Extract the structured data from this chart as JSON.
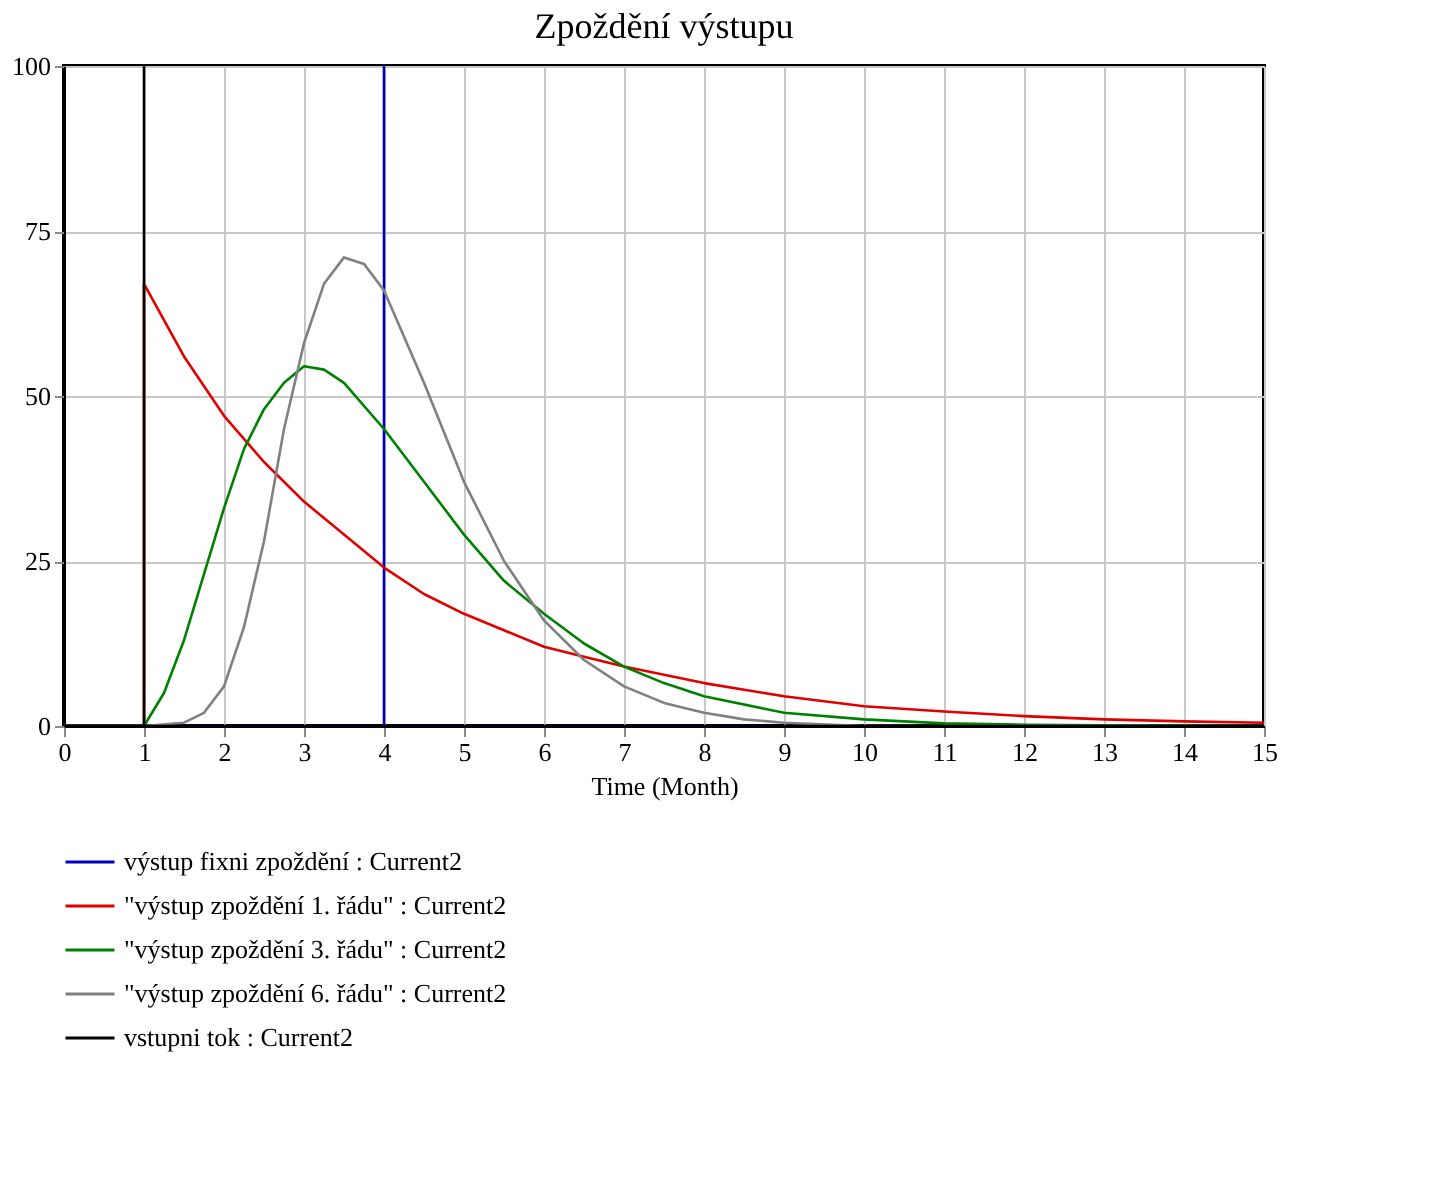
{
  "chart_data": {
    "type": "line",
    "title": "Zpoždění výstupu",
    "xlabel": "Time (Month)",
    "xlim": [
      0,
      15
    ],
    "xticks": [
      0,
      1,
      2,
      3,
      4,
      5,
      6,
      7,
      8,
      9,
      10,
      11,
      12,
      13,
      14,
      15
    ],
    "ylim": [
      0,
      100
    ],
    "yticks": [
      0,
      25,
      50,
      75,
      100
    ],
    "grid": true,
    "legend": "bottom",
    "marker": "none",
    "line_style": "solid",
    "series": [
      {
        "name": "výstup fixni zpoždění : Current2",
        "color": "#0000c0",
        "x": [
          0,
          4,
          4,
          4,
          15
        ],
        "values": [
          0,
          0,
          100,
          0,
          0
        ]
      },
      {
        "name": "\"výstup zpoždění 1. řádu\" : Current2",
        "color": "#e00000",
        "x": [
          0,
          1,
          1,
          1.5,
          2,
          2.5,
          3,
          3.5,
          4,
          4.5,
          5,
          5.5,
          6,
          6.5,
          7,
          8,
          9,
          10,
          11,
          12,
          13,
          14,
          15
        ],
        "values": [
          0,
          0,
          67,
          56,
          47,
          40,
          34,
          29,
          24,
          20,
          17,
          14.5,
          12,
          10.5,
          9,
          6.5,
          4.5,
          3,
          2.2,
          1.5,
          1,
          0.7,
          0.5
        ]
      },
      {
        "name": "\"výstup zpoždění 3. řádu\" : Current2",
        "color": "#008000",
        "x": [
          0,
          1,
          1.25,
          1.5,
          1.75,
          2,
          2.25,
          2.5,
          2.75,
          3,
          3.25,
          3.5,
          4,
          4.5,
          5,
          5.5,
          6,
          6.5,
          7,
          7.5,
          8,
          9,
          10,
          11,
          12,
          13,
          15
        ],
        "values": [
          0,
          0,
          5,
          13,
          23,
          33,
          42,
          48,
          52,
          54.5,
          54,
          52,
          45,
          37,
          29,
          22,
          17,
          12.5,
          9,
          6.5,
          4.5,
          2,
          1,
          0.4,
          0.2,
          0.1,
          0
        ]
      },
      {
        "name": "\"výstup zpoždění 6. řádu\" : Current2",
        "color": "#808080",
        "x": [
          0,
          1,
          1.5,
          1.75,
          2,
          2.25,
          2.5,
          2.75,
          3,
          3.25,
          3.5,
          3.75,
          4,
          4.5,
          5,
          5.5,
          6,
          6.5,
          7,
          7.5,
          8,
          8.5,
          9,
          10,
          15
        ],
        "values": [
          0,
          0,
          0.5,
          2,
          6,
          15,
          28,
          45,
          58,
          67,
          71,
          70,
          66,
          52,
          37,
          25,
          16,
          10,
          6,
          3.5,
          2,
          1,
          0.5,
          0,
          0
        ]
      },
      {
        "name": "vstupni tok : Current2",
        "color": "#000000",
        "x": [
          0,
          1,
          1,
          1,
          15
        ],
        "values": [
          0,
          0,
          100,
          0,
          0
        ]
      }
    ]
  }
}
